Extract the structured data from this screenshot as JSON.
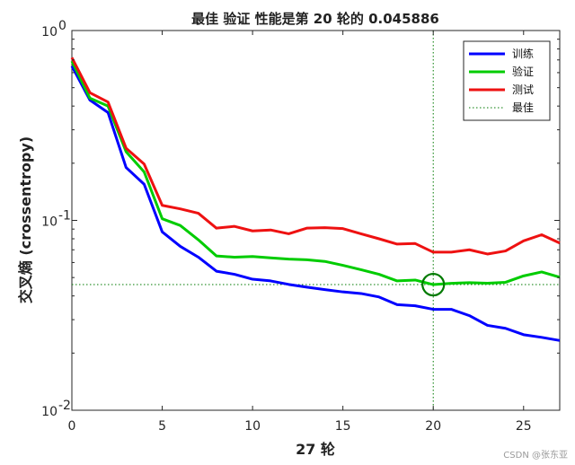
{
  "chart_data": {
    "type": "line",
    "title": "最佳 验证 性能是第 20 轮的 0.045886",
    "xlabel": "27 轮",
    "ylabel": "交叉熵 (crossentropy)",
    "xlim": [
      0,
      27
    ],
    "ylim": [
      0.01,
      1
    ],
    "yscale": "log",
    "x_ticks": [
      "0",
      "5",
      "10",
      "15",
      "20",
      "25"
    ],
    "y_ticks": [
      {
        "base": "10",
        "exp": "0"
      },
      {
        "base": "10",
        "exp": "-1"
      },
      {
        "base": "10",
        "exp": "-2"
      }
    ],
    "x": [
      0,
      1,
      2,
      3,
      4,
      5,
      6,
      7,
      8,
      9,
      10,
      11,
      12,
      13,
      14,
      15,
      16,
      17,
      18,
      19,
      20,
      21,
      22,
      23,
      24,
      25,
      26,
      27
    ],
    "series": [
      {
        "name": "训练",
        "color": "#0000ff",
        "values": [
          0.65,
          0.43,
          0.37,
          0.19,
          0.155,
          0.087,
          0.073,
          0.064,
          0.054,
          0.052,
          0.049,
          0.048,
          0.046,
          0.0445,
          0.0432,
          0.042,
          0.0412,
          0.0395,
          0.036,
          0.0355,
          0.034,
          0.034,
          0.0315,
          0.028,
          0.027,
          0.025,
          0.0242,
          0.0233
        ]
      },
      {
        "name": "验证",
        "color": "#00cc00",
        "values": [
          0.69,
          0.44,
          0.4,
          0.23,
          0.18,
          0.102,
          0.094,
          0.079,
          0.065,
          0.064,
          0.0645,
          0.0635,
          0.0625,
          0.062,
          0.0608,
          0.058,
          0.055,
          0.052,
          0.048,
          0.0485,
          0.045886,
          0.0466,
          0.047,
          0.0467,
          0.0472,
          0.051,
          0.0535,
          0.0502
        ]
      },
      {
        "name": "测试",
        "color": "#ee1111",
        "values": [
          0.72,
          0.47,
          0.42,
          0.24,
          0.198,
          0.12,
          0.115,
          0.109,
          0.091,
          0.093,
          0.088,
          0.089,
          0.085,
          0.091,
          0.0915,
          0.0905,
          0.085,
          0.08,
          0.075,
          0.0755,
          0.068,
          0.068,
          0.07,
          0.0665,
          0.069,
          0.078,
          0.084,
          0.076
        ]
      }
    ],
    "best": {
      "name": "最佳",
      "epoch": 20,
      "value": 0.045886,
      "color": "#007a00"
    },
    "legend_position": "top-right",
    "grid": false
  },
  "watermark": "CSDN @张东亚"
}
